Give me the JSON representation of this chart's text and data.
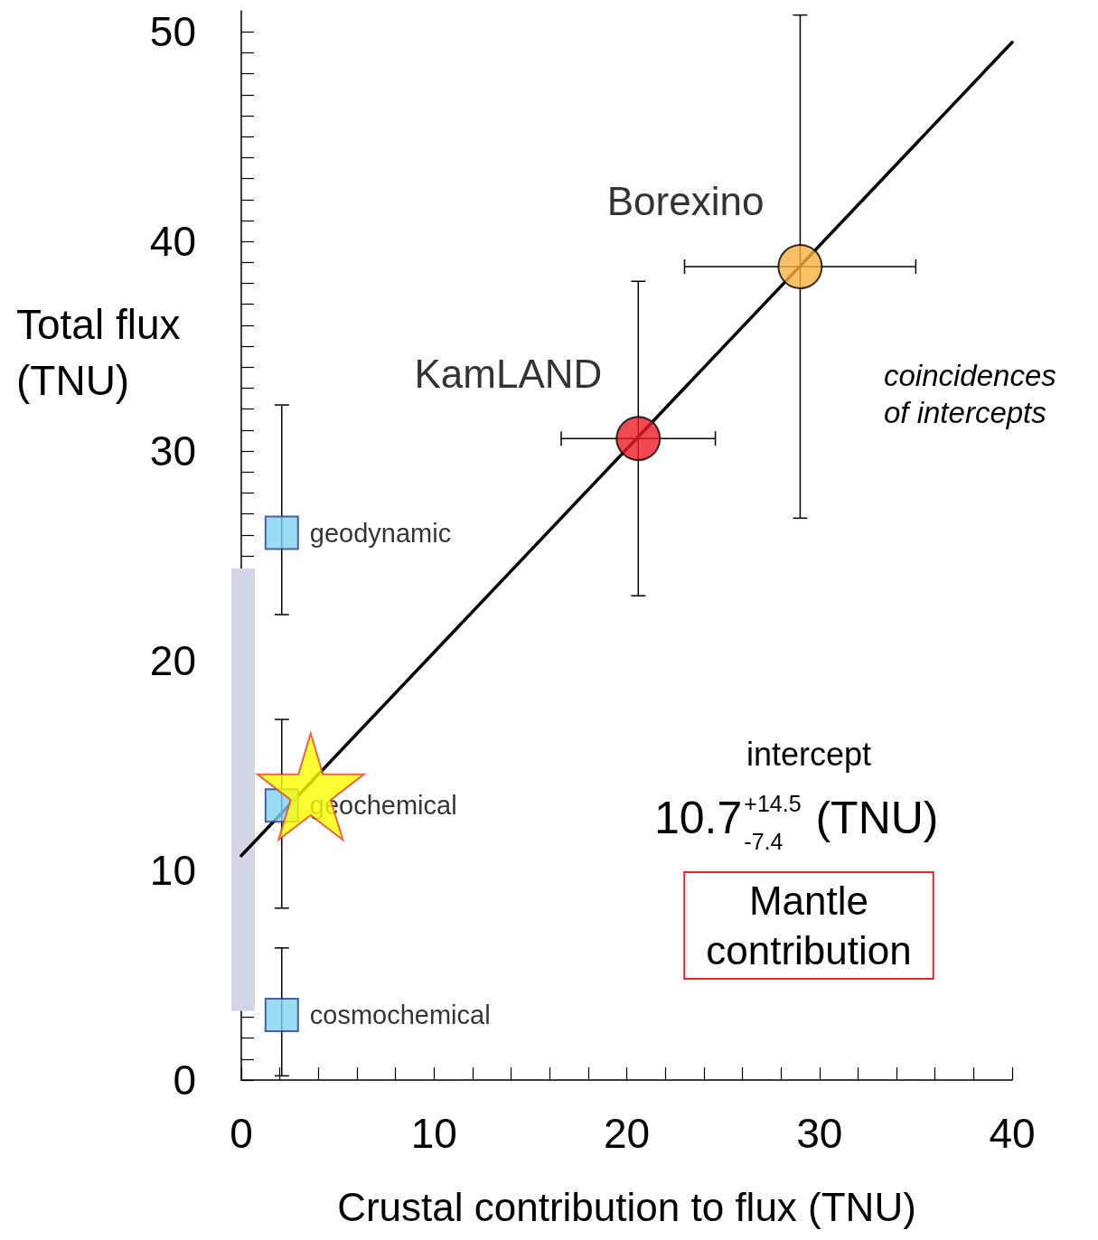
{
  "chart_data": {
    "type": "scatter",
    "xlabel": "Crustal contribution to flux (TNU)",
    "ylabel": "Total flux\n(TNU)",
    "xlim": [
      0,
      40
    ],
    "xticks": [
      0,
      10,
      20,
      30,
      40
    ],
    "ylim": [
      0,
      51
    ],
    "yticks": [
      0,
      10,
      20,
      30,
      40,
      50
    ],
    "grid": false,
    "legend": false,
    "series": [
      {
        "type": "bar",
        "color": "#d5d5e8",
        "x": [
          0
        ],
        "base": [
          3.3
        ],
        "values": [
          21.1
        ]
      },
      {
        "type": "line",
        "color": "#000000",
        "marker": "none",
        "x": [
          0,
          40
        ],
        "values": [
          10.7,
          49.5
        ]
      },
      {
        "name": "geodynamic",
        "color": "#7fd3f0",
        "marker": "square",
        "x": [
          2.1
        ],
        "values": [
          26.1
        ],
        "errors": [
          [
            22.2,
            32.2
          ]
        ]
      },
      {
        "name": "geochemical",
        "color": "#7fd3f0",
        "marker": "square",
        "x": [
          2.1
        ],
        "values": [
          13.1
        ],
        "errors": [
          [
            8.2,
            17.2
          ]
        ]
      },
      {
        "name": "cosmochemical",
        "color": "#7fd3f0",
        "marker": "square",
        "x": [
          2.1
        ],
        "values": [
          3.1
        ],
        "errors": [
          [
            0.2,
            6.3
          ]
        ]
      },
      {
        "name": "KamLAND",
        "color": "#ee1c25",
        "marker": "circle",
        "x": [
          20.6
        ],
        "values": [
          30.6
        ],
        "errors": [
          [
            23.1,
            38.1
          ]
        ],
        "xerrors": [
          [
            16.6,
            24.6
          ]
        ]
      },
      {
        "name": "Borexino",
        "color": "#fbb040",
        "marker": "circle",
        "x": [
          29.0
        ],
        "values": [
          38.8
        ],
        "errors": [
          [
            26.8,
            50.8
          ]
        ],
        "xerrors": [
          [
            23.0,
            35.0
          ]
        ]
      },
      {
        "color": "#ffff00",
        "marker": "star",
        "x": [
          3.6
        ],
        "values": [
          14.0
        ]
      }
    ],
    "annotations": [
      "coincidences\nof intercepts",
      "intercept",
      "10.7$^{+14.5}$$_{-7.4}$ (TNU)",
      "Mantle\ncontribution"
    ]
  }
}
